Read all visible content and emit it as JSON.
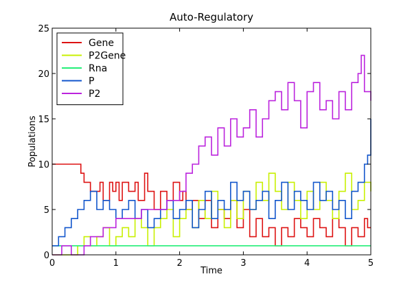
{
  "chart_data": {
    "type": "line",
    "step": true,
    "title": "Auto-Regulatory",
    "xlabel": "Time",
    "ylabel": "Populations",
    "xlim": [
      0,
      5
    ],
    "ylim": [
      0,
      25
    ],
    "xticks": [
      0,
      1,
      2,
      3,
      4,
      5
    ],
    "yticks": [
      0,
      5,
      10,
      15,
      20,
      25
    ],
    "grid": false,
    "legend_position": "top-left",
    "series": [
      {
        "name": "Gene",
        "color": "#dd1111",
        "x": [
          0,
          0.45,
          0.5,
          0.6,
          0.75,
          0.8,
          0.9,
          0.95,
          1.0,
          1.05,
          1.1,
          1.2,
          1.3,
          1.35,
          1.45,
          1.5,
          1.6,
          1.7,
          1.8,
          1.9,
          2.0,
          2.05,
          2.1,
          2.2,
          2.3,
          2.4,
          2.5,
          2.6,
          2.7,
          2.8,
          2.9,
          3.0,
          3.1,
          3.2,
          3.3,
          3.4,
          3.5,
          3.6,
          3.7,
          3.8,
          3.9,
          4.0,
          4.1,
          4.2,
          4.3,
          4.4,
          4.5,
          4.6,
          4.7,
          4.8,
          4.9,
          4.95,
          5.0
        ],
        "y": [
          10,
          9,
          8,
          7,
          8,
          6,
          8,
          7,
          8,
          6,
          8,
          7,
          8,
          6,
          9,
          7,
          5,
          7,
          6,
          8,
          6,
          7,
          5,
          6,
          4,
          6,
          3,
          5,
          4,
          6,
          3,
          5,
          2,
          4,
          2,
          3,
          1,
          3,
          2,
          4,
          3,
          2,
          4,
          3,
          2,
          4,
          3,
          1,
          3,
          2,
          4,
          3,
          3
        ]
      },
      {
        "name": "P2Gene",
        "color": "#c8f000",
        "x": [
          0,
          0.3,
          0.4,
          0.5,
          0.6,
          0.7,
          0.8,
          0.9,
          1.0,
          1.1,
          1.2,
          1.3,
          1.4,
          1.5,
          1.6,
          1.7,
          1.8,
          1.9,
          2.0,
          2.1,
          2.2,
          2.3,
          2.4,
          2.5,
          2.6,
          2.7,
          2.8,
          2.9,
          3.0,
          3.1,
          3.2,
          3.3,
          3.4,
          3.5,
          3.6,
          3.7,
          3.8,
          3.9,
          4.0,
          4.1,
          4.2,
          4.3,
          4.4,
          4.5,
          4.6,
          4.7,
          4.8,
          4.9,
          5.0
        ],
        "y": [
          0,
          0,
          1,
          2,
          1,
          2,
          3,
          1,
          2,
          3,
          2,
          4,
          3,
          1,
          3,
          4,
          5,
          2,
          4,
          5,
          3,
          6,
          4,
          7,
          5,
          3,
          6,
          4,
          7,
          5,
          8,
          6,
          9,
          7,
          5,
          8,
          6,
          4,
          7,
          5,
          8,
          6,
          4,
          7,
          9,
          5,
          6,
          8,
          7
        ]
      },
      {
        "name": "Rna",
        "color": "#22ee77",
        "x": [
          0,
          0.5,
          5.0
        ],
        "y": [
          1,
          1,
          1
        ]
      },
      {
        "name": "P",
        "color": "#1155cc",
        "x": [
          0,
          0.1,
          0.2,
          0.3,
          0.4,
          0.5,
          0.6,
          0.7,
          0.8,
          0.9,
          1.0,
          1.1,
          1.2,
          1.3,
          1.4,
          1.5,
          1.6,
          1.7,
          1.8,
          1.9,
          2.0,
          2.1,
          2.2,
          2.3,
          2.4,
          2.5,
          2.6,
          2.7,
          2.8,
          2.9,
          3.0,
          3.1,
          3.2,
          3.3,
          3.4,
          3.5,
          3.6,
          3.7,
          3.8,
          3.9,
          4.0,
          4.1,
          4.2,
          4.3,
          4.4,
          4.5,
          4.6,
          4.7,
          4.8,
          4.9,
          4.95,
          5.0
        ],
        "y": [
          1,
          2,
          3,
          4,
          5,
          6,
          7,
          5,
          6,
          5,
          4,
          5,
          6,
          4,
          5,
          3,
          4,
          5,
          6,
          4,
          5,
          6,
          3,
          5,
          7,
          4,
          6,
          5,
          8,
          6,
          7,
          5,
          6,
          7,
          4,
          6,
          8,
          5,
          7,
          6,
          5,
          8,
          6,
          7,
          5,
          6,
          4,
          7,
          8,
          10,
          11,
          15
        ]
      },
      {
        "name": "P2",
        "color": "#bb22dd",
        "x": [
          0,
          0.15,
          0.3,
          0.5,
          0.6,
          0.8,
          1.0,
          1.2,
          1.4,
          1.6,
          1.8,
          2.0,
          2.1,
          2.2,
          2.3,
          2.4,
          2.5,
          2.6,
          2.7,
          2.8,
          2.9,
          3.0,
          3.1,
          3.2,
          3.3,
          3.4,
          3.5,
          3.6,
          3.7,
          3.8,
          3.9,
          4.0,
          4.1,
          4.2,
          4.3,
          4.4,
          4.5,
          4.6,
          4.7,
          4.8,
          4.85,
          4.9,
          5.0
        ],
        "y": [
          0,
          1,
          0,
          1,
          2,
          3,
          4,
          4,
          5,
          5,
          6,
          7,
          9,
          10,
          12,
          13,
          11,
          14,
          12,
          15,
          13,
          14,
          16,
          13,
          15,
          17,
          18,
          16,
          19,
          17,
          14,
          18,
          19,
          16,
          17,
          15,
          18,
          16,
          19,
          20,
          22,
          18,
          17
        ]
      }
    ]
  }
}
